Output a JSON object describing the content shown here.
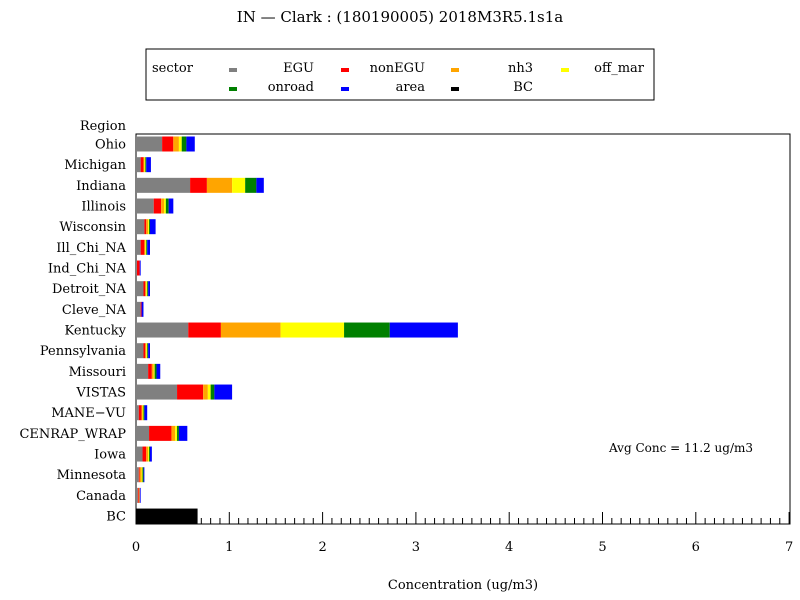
{
  "chart_data": {
    "type": "bar",
    "orientation": "horizontal",
    "stacked": true,
    "title": "IN  —  Clark : (180190005)  2018M3R5.1s1a",
    "xlabel": "Concentration  (ug/m3)",
    "ylabel": "Region",
    "xlim": [
      0,
      7
    ],
    "x_ticks": [
      0,
      1,
      2,
      3,
      4,
      5,
      6,
      7
    ],
    "x_minor_step": 0.1,
    "grid": false,
    "legend": {
      "title": "sector",
      "placement": "top",
      "entries": [
        {
          "name": "EGU",
          "color": "#808080"
        },
        {
          "name": "nonEGU",
          "color": "#ff0000"
        },
        {
          "name": "nh3",
          "color": "#ffa500"
        },
        {
          "name": "off_mar",
          "color": "#ffff00"
        },
        {
          "name": "onroad",
          "color": "#008000"
        },
        {
          "name": "area",
          "color": "#0000ff"
        },
        {
          "name": "BC",
          "color": "#000000"
        }
      ]
    },
    "annotation": "Avg Conc  =  11.2  ug/m3",
    "categories": [
      "Ohio",
      "Michigan",
      "Indiana",
      "Illinois",
      "Wisconsin",
      "Ill_Chi_NA",
      "Ind_Chi_NA",
      "Detroit_NA",
      "Cleve_NA",
      "Kentucky",
      "Pennsylvania",
      "Missouri",
      "VISTAS",
      "MANE−VU",
      "CENRAP_WRAP",
      "Iowa",
      "Minnesota",
      "Canada",
      "BC"
    ],
    "series": [
      {
        "name": "EGU",
        "values": [
          0.28,
          0.05,
          0.58,
          0.19,
          0.09,
          0.05,
          0.01,
          0.08,
          0.05,
          0.56,
          0.08,
          0.13,
          0.44,
          0.03,
          0.14,
          0.07,
          0.03,
          0.02,
          0
        ]
      },
      {
        "name": "nonEGU",
        "values": [
          0.12,
          0.03,
          0.18,
          0.08,
          0.02,
          0.04,
          0.03,
          0.02,
          0.01,
          0.35,
          0.02,
          0.04,
          0.28,
          0.03,
          0.24,
          0.04,
          0.01,
          0.01,
          0
        ]
      },
      {
        "name": "nh3",
        "values": [
          0.06,
          0.01,
          0.27,
          0.03,
          0.02,
          0.01,
          0,
          0.01,
          0,
          0.64,
          0.01,
          0.02,
          0.05,
          0.01,
          0.04,
          0.02,
          0.02,
          0.01,
          0
        ]
      },
      {
        "name": "off_mar",
        "values": [
          0.03,
          0.01,
          0.14,
          0.02,
          0.01,
          0.01,
          0,
          0.01,
          0,
          0.68,
          0.01,
          0.01,
          0.03,
          0.01,
          0.02,
          0.01,
          0.01,
          0,
          0
        ]
      },
      {
        "name": "onroad",
        "values": [
          0.05,
          0.01,
          0.12,
          0.03,
          0.01,
          0.01,
          0,
          0.01,
          0,
          0.49,
          0.01,
          0.02,
          0.04,
          0.01,
          0.02,
          0.01,
          0.01,
          0,
          0
        ]
      },
      {
        "name": "area",
        "values": [
          0.09,
          0.05,
          0.08,
          0.05,
          0.06,
          0.03,
          0.01,
          0.02,
          0.02,
          0.73,
          0.02,
          0.04,
          0.19,
          0.03,
          0.09,
          0.02,
          0.01,
          0.01,
          0
        ]
      },
      {
        "name": "BC",
        "values": [
          0,
          0,
          0,
          0,
          0,
          0,
          0,
          0,
          0,
          0,
          0,
          0,
          0,
          0,
          0,
          0,
          0,
          0,
          0.66
        ]
      }
    ]
  }
}
